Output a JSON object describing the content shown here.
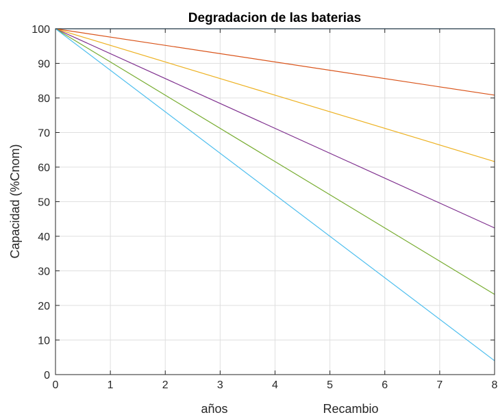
{
  "chart_data": {
    "type": "line",
    "title": "Degradacion de las baterias",
    "xlabel": "años",
    "xlabel_secondary": "Recambio",
    "ylabel": "Capacidad (%Cnom)",
    "xlim": [
      0,
      8
    ],
    "ylim": [
      0,
      100
    ],
    "xticks": [
      0,
      1,
      2,
      3,
      4,
      5,
      6,
      7,
      8
    ],
    "yticks": [
      0,
      10,
      20,
      30,
      40,
      50,
      60,
      70,
      80,
      90,
      100
    ],
    "grid": true,
    "series": [
      {
        "x": [
          0,
          8
        ],
        "values": [
          100,
          100
        ],
        "color": "#0072BD"
      },
      {
        "x": [
          0,
          8
        ],
        "values": [
          100,
          80.8
        ],
        "color": "#D95319"
      },
      {
        "x": [
          0,
          8
        ],
        "values": [
          100,
          61.6
        ],
        "color": "#EDB120"
      },
      {
        "x": [
          0,
          8
        ],
        "values": [
          100,
          42.4
        ],
        "color": "#7E2F8E"
      },
      {
        "x": [
          0,
          8
        ],
        "values": [
          100,
          23.2
        ],
        "color": "#77AC30"
      },
      {
        "x": [
          0,
          8
        ],
        "values": [
          100,
          4.0
        ],
        "color": "#4DBEEE"
      }
    ]
  }
}
